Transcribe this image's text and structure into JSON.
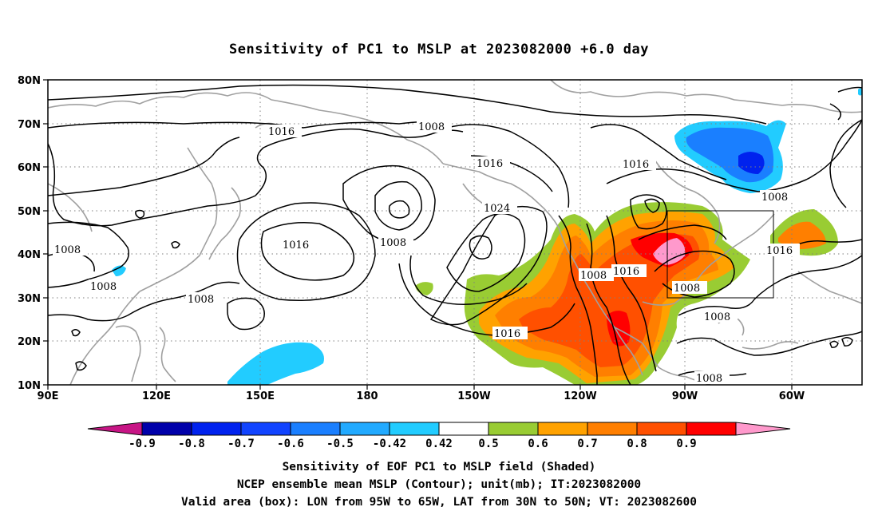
{
  "title": "Sensitivity of PC1 to MSLP at 2023082000 +6.0 day",
  "lat_labels": [
    "80N",
    "70N",
    "60N",
    "50N",
    "40N",
    "30N",
    "20N",
    "10N"
  ],
  "lon_labels": [
    "90E",
    "120E",
    "150E",
    "180",
    "150W",
    "120W",
    "90W",
    "60W"
  ],
  "contour_labels": {
    "c1016_a": "1016",
    "c1008_a": "1008",
    "c1016_b": "1016",
    "c1016_c": "1016",
    "c1008_b": "1008",
    "c1024": "1024",
    "c1008_c": "1008",
    "c1016_d": "1016",
    "c1008_d": "1008",
    "c1008_e": "1008",
    "c1008_f": "1008",
    "c1016_e": "1016",
    "c1008_g": "1008",
    "c1016_f": "1016",
    "c1016_g": "1016",
    "c1008_h": "1008",
    "c1008_i": "1008",
    "c1008_j": "1008"
  },
  "colorbar": {
    "colors": [
      "#c71585",
      "#0000aa",
      "#0022ee",
      "#1144ff",
      "#1a7fff",
      "#22aaff",
      "#22ccff",
      "#ffffff",
      "#99cc33",
      "#ffa200",
      "#ff7f00",
      "#ff5000",
      "#ff0000",
      "#ff99cc"
    ],
    "labels": [
      "-0.9",
      "-0.8",
      "-0.7",
      "-0.6",
      "-0.5",
      "-0.42",
      "0.42",
      "0.5",
      "0.6",
      "0.7",
      "0.8",
      "0.9"
    ]
  },
  "footer": {
    "line1": "Sensitivity of EOF PC1 to MSLP field (Shaded)",
    "line2": "NCEP ensemble mean MSLP (Contour); unit(mb); IT:2023082000",
    "line3": "Valid area (box): LON from 95W to 65W, LAT from 30N to 50N; VT: 2023082600"
  }
}
